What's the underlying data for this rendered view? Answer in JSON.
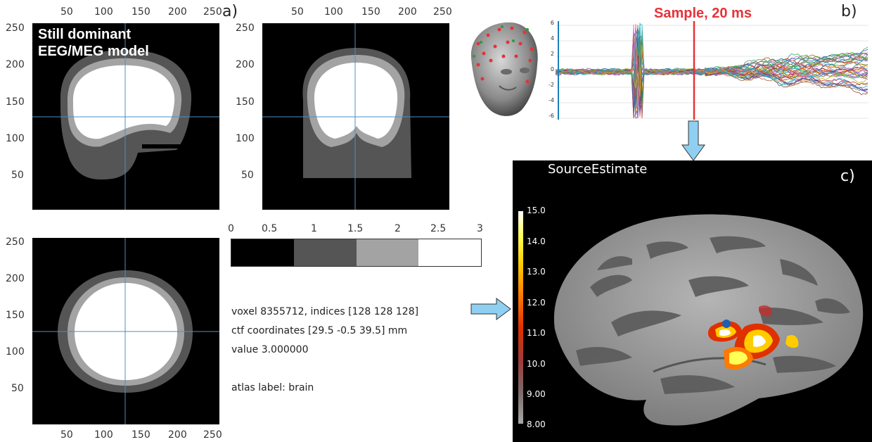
{
  "panel_labels": {
    "a": "a)",
    "b": "b)",
    "c": "c)"
  },
  "mri_views": {
    "top_ticks": [
      "50",
      "100",
      "150",
      "200",
      "250"
    ],
    "left_ticks": [
      "250",
      "200",
      "150",
      "100",
      "50"
    ],
    "annotation_line1": "Still dominant",
    "annotation_line2": "EEG/MEG model",
    "colors": {
      "background": "#000000",
      "scalp": "#555555",
      "skull": "#a3a3a3",
      "brain": "#ffffff",
      "crosshair": "#4a90c8"
    }
  },
  "colorbar": {
    "ticks": [
      "0",
      "0.5",
      "1",
      "1.5",
      "2",
      "2.5",
      "3"
    ],
    "segment_colors": [
      "#000000",
      "#555555",
      "#a3a3a3",
      "#ffffff"
    ]
  },
  "voxel_info": {
    "line1": "voxel 8355712, indices [128 128 128]",
    "line2": "ctf coordinates [29.5 -0.5 39.5] mm",
    "line3": "value 3.000000",
    "line4": "atlas label: brain"
  },
  "eeg": {
    "sample_label": "Sample, 20 ms",
    "y_ticks": [
      "6",
      "4",
      "2",
      "0",
      "-2",
      "-4",
      "-6"
    ],
    "sample_color": "#e53238"
  },
  "source_estimate": {
    "title": "SourceEstimate",
    "cbar_ticks": [
      "15.0",
      "14.0",
      "13.0",
      "12.0",
      "11.0",
      "10.0",
      "9.00",
      "8.00"
    ]
  }
}
